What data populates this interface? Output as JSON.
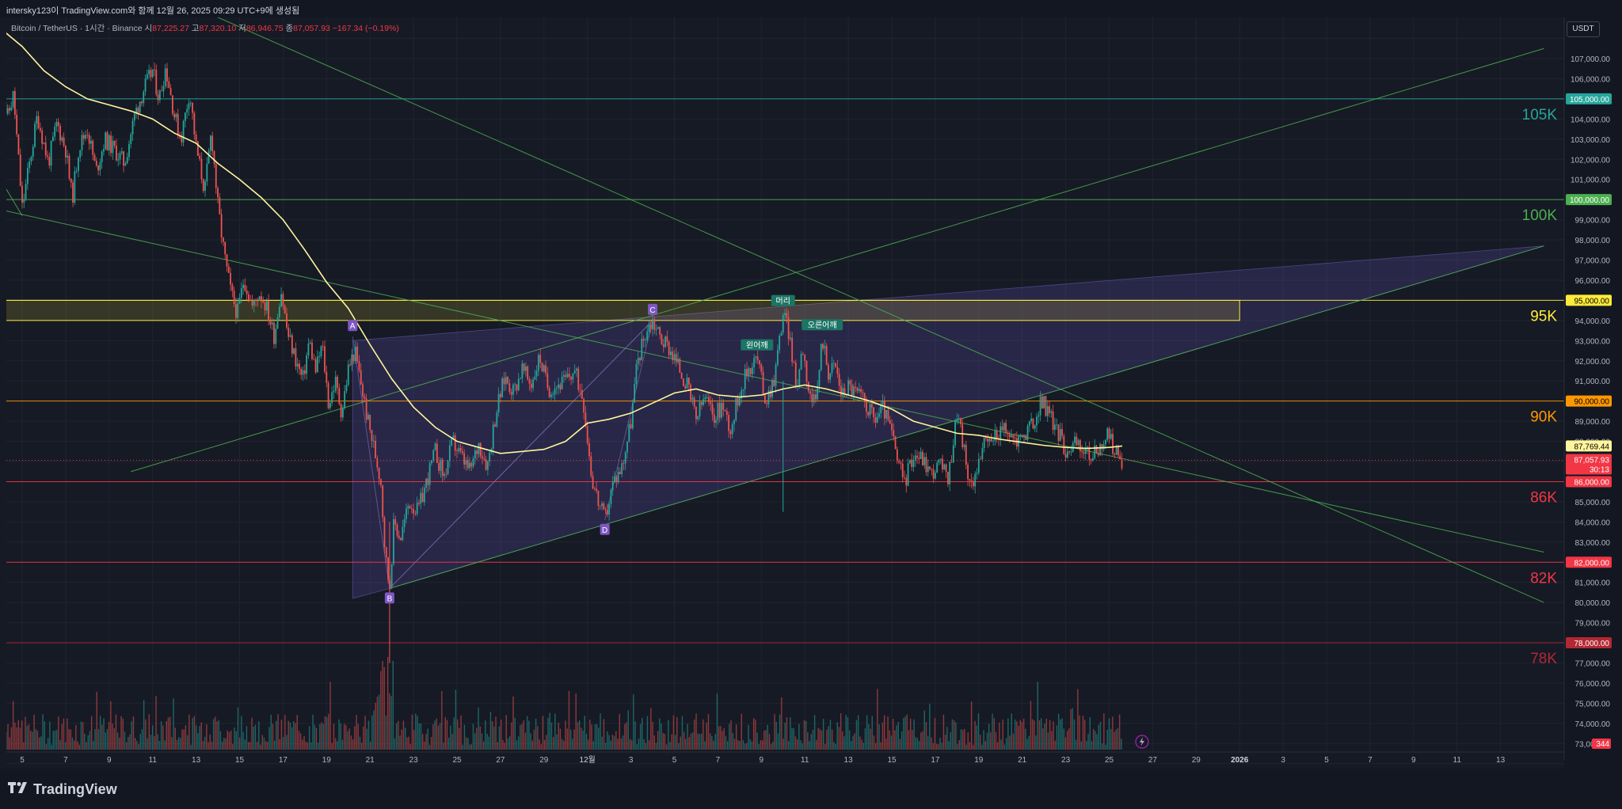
{
  "header": {
    "caption": "intersky123이 TradingView.com와 함께 12월 26, 2025 09:29 UTC+9에 생성됨"
  },
  "legend": {
    "symbol": "Bitcoin / TetherUS · 1시간 · Binance",
    "open_label": "시",
    "open": "87,225.27",
    "high_label": "고",
    "high": "87,320.10",
    "low_label": "저",
    "low": "86,946.75",
    "close_label": "종",
    "close": "87,057.93",
    "change": "−167.34 (−0.19%)"
  },
  "currency_button": "USDT",
  "brand": "TradingView",
  "colors": {
    "background": "#161a25",
    "up": "#26a69a",
    "down": "#ef5350",
    "ma": "#fff59d",
    "channel_fill": "#5b4aa0",
    "line_green": "#4caf50",
    "zone_yellow": "#ffeb3b",
    "level_red": "#f23645",
    "level_orange": "#ff9800",
    "level_teal": "#26a69a"
  },
  "chart_data": {
    "type": "candlestick",
    "title": "Bitcoin / TetherUS · 1시간 · Binance",
    "y_axis": {
      "range": [
        72000,
        108000
      ],
      "ticks": [
        73000,
        74000,
        75000,
        76000,
        77000,
        79000,
        80000,
        81000,
        83000,
        84000,
        85000,
        88000,
        89000,
        91000,
        92000,
        93000,
        94000,
        96000,
        97000,
        98000,
        99000,
        101000,
        102000,
        103000,
        104000,
        106000,
        107000
      ],
      "tick_labels": [
        "73,000.00",
        "74,000.00",
        "75,000.00",
        "76,000.00",
        "77,000.00",
        "79,000.00",
        "80,000.00",
        "81,000.00",
        "83,000.00",
        "84,000.00",
        "85,000.00",
        "88,000.00",
        "89,000.00",
        "91,000.00",
        "92,000.00",
        "93,000.00",
        "94,000.00",
        "96,000.00",
        "97,000.00",
        "98,000.00",
        "99,000.00",
        "101,000.00",
        "102,000.00",
        "103,000.00",
        "104,000.00",
        "106,000.00",
        "107,000.00"
      ]
    },
    "x_axis": {
      "labels": [
        {
          "day": 5,
          "text": "5"
        },
        {
          "day": 7,
          "text": "7"
        },
        {
          "day": 9,
          "text": "9"
        },
        {
          "day": 11,
          "text": "11"
        },
        {
          "day": 13,
          "text": "13"
        },
        {
          "day": 15,
          "text": "15"
        },
        {
          "day": 17,
          "text": "17"
        },
        {
          "day": 19,
          "text": "19"
        },
        {
          "day": 21,
          "text": "21"
        },
        {
          "day": 23,
          "text": "23"
        },
        {
          "day": 25,
          "text": "25"
        },
        {
          "day": 27,
          "text": "27"
        },
        {
          "day": 29,
          "text": "29"
        },
        {
          "day": 31,
          "text": "12월"
        },
        {
          "day": 33,
          "text": "3"
        },
        {
          "day": 35,
          "text": "5"
        },
        {
          "day": 37,
          "text": "7"
        },
        {
          "day": 39,
          "text": "9"
        },
        {
          "day": 41,
          "text": "11"
        },
        {
          "day": 43,
          "text": "13"
        },
        {
          "day": 45,
          "text": "15"
        },
        {
          "day": 47,
          "text": "17"
        },
        {
          "day": 49,
          "text": "19"
        },
        {
          "day": 51,
          "text": "21"
        },
        {
          "day": 53,
          "text": "23"
        },
        {
          "day": 55,
          "text": "25"
        },
        {
          "day": 57,
          "text": "27"
        },
        {
          "day": 59,
          "text": "29"
        },
        {
          "day": 61,
          "text": "2026"
        },
        {
          "day": 63,
          "text": "3"
        },
        {
          "day": 65,
          "text": "5"
        },
        {
          "day": 67,
          "text": "7"
        },
        {
          "day": 69,
          "text": "9"
        },
        {
          "day": 71,
          "text": "11"
        },
        {
          "day": 73,
          "text": "13"
        }
      ]
    },
    "price_path": [
      [
        4.0,
        106500
      ],
      [
        4.3,
        104000
      ],
      [
        4.6,
        105200
      ],
      [
        5.0,
        99600
      ],
      [
        5.4,
        102200
      ],
      [
        5.7,
        104200
      ],
      [
        6.2,
        101800
      ],
      [
        6.6,
        103800
      ],
      [
        7.0,
        102500
      ],
      [
        7.3,
        100000
      ],
      [
        7.6,
        102600
      ],
      [
        8.0,
        103500
      ],
      [
        8.4,
        101400
      ],
      [
        8.8,
        103000
      ],
      [
        9.3,
        102400
      ],
      [
        9.7,
        101800
      ],
      [
        10.2,
        104300
      ],
      [
        10.6,
        105500
      ],
      [
        11.0,
        106400
      ],
      [
        11.3,
        105000
      ],
      [
        11.6,
        106600
      ],
      [
        12.0,
        104200
      ],
      [
        12.3,
        103000
      ],
      [
        12.7,
        105400
      ],
      [
        13.0,
        102600
      ],
      [
        13.4,
        100400
      ],
      [
        13.7,
        103400
      ],
      [
        14.0,
        99700
      ],
      [
        14.3,
        97200
      ],
      [
        14.6,
        95400
      ],
      [
        14.9,
        94300
      ],
      [
        15.2,
        96100
      ],
      [
        15.6,
        94600
      ],
      [
        15.9,
        95400
      ],
      [
        16.2,
        94800
      ],
      [
        16.6,
        93200
      ],
      [
        16.9,
        95600
      ],
      [
        17.2,
        93400
      ],
      [
        17.6,
        92000
      ],
      [
        17.9,
        91000
      ],
      [
        18.2,
        93000
      ],
      [
        18.5,
        91500
      ],
      [
        18.8,
        92800
      ],
      [
        19.1,
        89800
      ],
      [
        19.4,
        91000
      ],
      [
        19.7,
        89400
      ],
      [
        20.0,
        91600
      ],
      [
        20.3,
        92500
      ],
      [
        20.6,
        90800
      ],
      [
        20.9,
        89000
      ],
      [
        21.2,
        87600
      ],
      [
        21.5,
        86000
      ],
      [
        21.7,
        82400
      ],
      [
        21.9,
        80700
      ],
      [
        22.1,
        84000
      ],
      [
        22.4,
        83200
      ],
      [
        22.8,
        85000
      ],
      [
        23.2,
        84500
      ],
      [
        23.6,
        86000
      ],
      [
        24.0,
        87500
      ],
      [
        24.4,
        86200
      ],
      [
        24.8,
        88000
      ],
      [
        25.2,
        87200
      ],
      [
        25.6,
        86500
      ],
      [
        26.0,
        87900
      ],
      [
        26.4,
        86800
      ],
      [
        26.8,
        89500
      ],
      [
        27.2,
        91200
      ],
      [
        27.6,
        90500
      ],
      [
        28.0,
        91600
      ],
      [
        28.4,
        90800
      ],
      [
        28.8,
        92200
      ],
      [
        29.2,
        90600
      ],
      [
        29.6,
        90800
      ],
      [
        30.0,
        91000
      ],
      [
        30.4,
        91500
      ],
      [
        30.8,
        90200
      ],
      [
        31.2,
        86200
      ],
      [
        31.5,
        85000
      ],
      [
        31.8,
        84100
      ],
      [
        32.2,
        86000
      ],
      [
        32.6,
        86800
      ],
      [
        33.0,
        89000
      ],
      [
        33.3,
        92000
      ],
      [
        33.7,
        93500
      ],
      [
        34.0,
        94000
      ],
      [
        34.4,
        93100
      ],
      [
        34.8,
        92600
      ],
      [
        35.2,
        91700
      ],
      [
        35.6,
        90700
      ],
      [
        36.0,
        89100
      ],
      [
        36.4,
        90200
      ],
      [
        36.8,
        89200
      ],
      [
        37.2,
        89800
      ],
      [
        37.6,
        88600
      ],
      [
        38.0,
        90500
      ],
      [
        38.4,
        91600
      ],
      [
        38.8,
        92200
      ],
      [
        39.2,
        90000
      ],
      [
        39.6,
        91200
      ],
      [
        40.0,
        94400
      ],
      [
        40.3,
        93300
      ],
      [
        40.6,
        90600
      ],
      [
        40.9,
        92800
      ],
      [
        41.2,
        90400
      ],
      [
        41.5,
        89700
      ],
      [
        41.8,
        93200
      ],
      [
        42.1,
        91400
      ],
      [
        42.4,
        91800
      ],
      [
        42.7,
        90300
      ],
      [
        43.0,
        90800
      ],
      [
        43.4,
        90400
      ],
      [
        43.8,
        89900
      ],
      [
        44.2,
        89100
      ],
      [
        44.6,
        89700
      ],
      [
        45.0,
        88400
      ],
      [
        45.3,
        86800
      ],
      [
        45.6,
        86000
      ],
      [
        46.0,
        87400
      ],
      [
        46.4,
        87200
      ],
      [
        46.8,
        86400
      ],
      [
        47.2,
        86900
      ],
      [
        47.6,
        86100
      ],
      [
        48.0,
        89500
      ],
      [
        48.3,
        87800
      ],
      [
        48.6,
        85500
      ],
      [
        48.9,
        86800
      ],
      [
        49.2,
        87700
      ],
      [
        49.6,
        88100
      ],
      [
        50.0,
        88600
      ],
      [
        50.4,
        88300
      ],
      [
        50.8,
        88000
      ],
      [
        51.2,
        88500
      ],
      [
        51.6,
        89000
      ],
      [
        51.9,
        90100
      ],
      [
        52.2,
        89400
      ],
      [
        52.6,
        88600
      ],
      [
        53.0,
        87600
      ],
      [
        53.4,
        87900
      ],
      [
        53.8,
        87600
      ],
      [
        54.2,
        87200
      ],
      [
        54.6,
        87800
      ],
      [
        55.0,
        88300
      ],
      [
        55.3,
        87400
      ],
      [
        55.6,
        87057.93
      ]
    ],
    "moving_average": [
      [
        4.0,
        108500
      ],
      [
        5.0,
        107600
      ],
      [
        6.0,
        106400
      ],
      [
        7.0,
        105600
      ],
      [
        8.0,
        105000
      ],
      [
        9.0,
        104700
      ],
      [
        10.0,
        104400
      ],
      [
        11.0,
        104000
      ],
      [
        12.0,
        103300
      ],
      [
        13.0,
        102800
      ],
      [
        14.0,
        101800
      ],
      [
        15.0,
        101000
      ],
      [
        16.0,
        100100
      ],
      [
        17.0,
        99000
      ],
      [
        18.0,
        97500
      ],
      [
        19.0,
        95900
      ],
      [
        20.0,
        94600
      ],
      [
        21.0,
        92800
      ],
      [
        22.0,
        91100
      ],
      [
        23.0,
        89700
      ],
      [
        24.0,
        88700
      ],
      [
        25.0,
        88000
      ],
      [
        26.0,
        87700
      ],
      [
        27.0,
        87400
      ],
      [
        28.0,
        87500
      ],
      [
        29.0,
        87600
      ],
      [
        30.0,
        88000
      ],
      [
        31.0,
        88900
      ],
      [
        32.0,
        89100
      ],
      [
        33.0,
        89400
      ],
      [
        34.0,
        89900
      ],
      [
        35.0,
        90400
      ],
      [
        36.0,
        90600
      ],
      [
        37.0,
        90300
      ],
      [
        38.0,
        90200
      ],
      [
        39.0,
        90300
      ],
      [
        40.0,
        90600
      ],
      [
        41.0,
        90800
      ],
      [
        42.0,
        90600
      ],
      [
        43.0,
        90300
      ],
      [
        44.0,
        90000
      ],
      [
        45.0,
        89600
      ],
      [
        46.0,
        89000
      ],
      [
        47.0,
        88700
      ],
      [
        48.0,
        88400
      ],
      [
        49.0,
        88300
      ],
      [
        50.0,
        88100
      ],
      [
        51.0,
        87950
      ],
      [
        52.0,
        87800
      ],
      [
        53.0,
        87700
      ],
      [
        54.0,
        87650
      ],
      [
        55.0,
        87700
      ],
      [
        55.6,
        87769.44
      ]
    ],
    "ma_last": "87,769.44",
    "last_price": "87,057.93",
    "countdown": "30:13",
    "volume_last": "344",
    "horizontal_levels": [
      {
        "price": 105000,
        "price_label": "105,000.00",
        "tag": "105K",
        "color": "#26a69a"
      },
      {
        "price": 100000,
        "price_label": "100,000.00",
        "tag": "100K",
        "color": "#4caf50"
      },
      {
        "price": 95000,
        "price_label": "95,000.00",
        "tag": "95K",
        "color": "#ffeb3b"
      },
      {
        "price": 90000,
        "price_label": "90,000.00",
        "tag": "90K",
        "color": "#ff9800"
      },
      {
        "price": 86000,
        "price_label": "86,000.00",
        "tag": "86K",
        "color": "#f23645"
      },
      {
        "price": 82000,
        "price_label": "82,000.00",
        "tag": "82K",
        "color": "#f23645"
      },
      {
        "price": 78000,
        "price_label": "78,000.00",
        "tag": "78K",
        "color": "#b22833"
      }
    ],
    "pattern_points": [
      {
        "label": "A",
        "day": 20.2,
        "price": 93200
      },
      {
        "label": "B",
        "day": 21.9,
        "price": 80700
      },
      {
        "label": "C",
        "day": 34.0,
        "price": 94000
      },
      {
        "label": "D",
        "day": 31.8,
        "price": 84100
      }
    ],
    "annotations": [
      {
        "label": "왼어깨",
        "day": 38.8,
        "price": 92200
      },
      {
        "label": "머리",
        "day": 40.0,
        "price": 94400
      },
      {
        "label": "오른어깨",
        "day": 41.8,
        "price": 93200
      }
    ],
    "supply_zone": {
      "low": 94000,
      "high": 95000,
      "from_day": 4,
      "to_day": 61
    },
    "trend_lines": [
      {
        "from": [
          4,
          99500
        ],
        "to": [
          75,
          82500
        ]
      },
      {
        "from": [
          12,
          110000
        ],
        "to": [
          75,
          80000
        ]
      },
      {
        "from": [
          10,
          86500
        ],
        "to": [
          75,
          107500
        ]
      },
      {
        "from": [
          21.9,
          80700
        ],
        "to": [
          75,
          97700
        ]
      },
      {
        "from": [
          4,
          101000
        ],
        "to": [
          5,
          99200
        ]
      }
    ],
    "channel": {
      "upper": [
        [
          20.2,
          93000
        ],
        [
          75,
          97700
        ]
      ],
      "lower": [
        [
          20.2,
          80200
        ],
        [
          21.9,
          80700
        ],
        [
          75,
          97700
        ]
      ]
    }
  }
}
